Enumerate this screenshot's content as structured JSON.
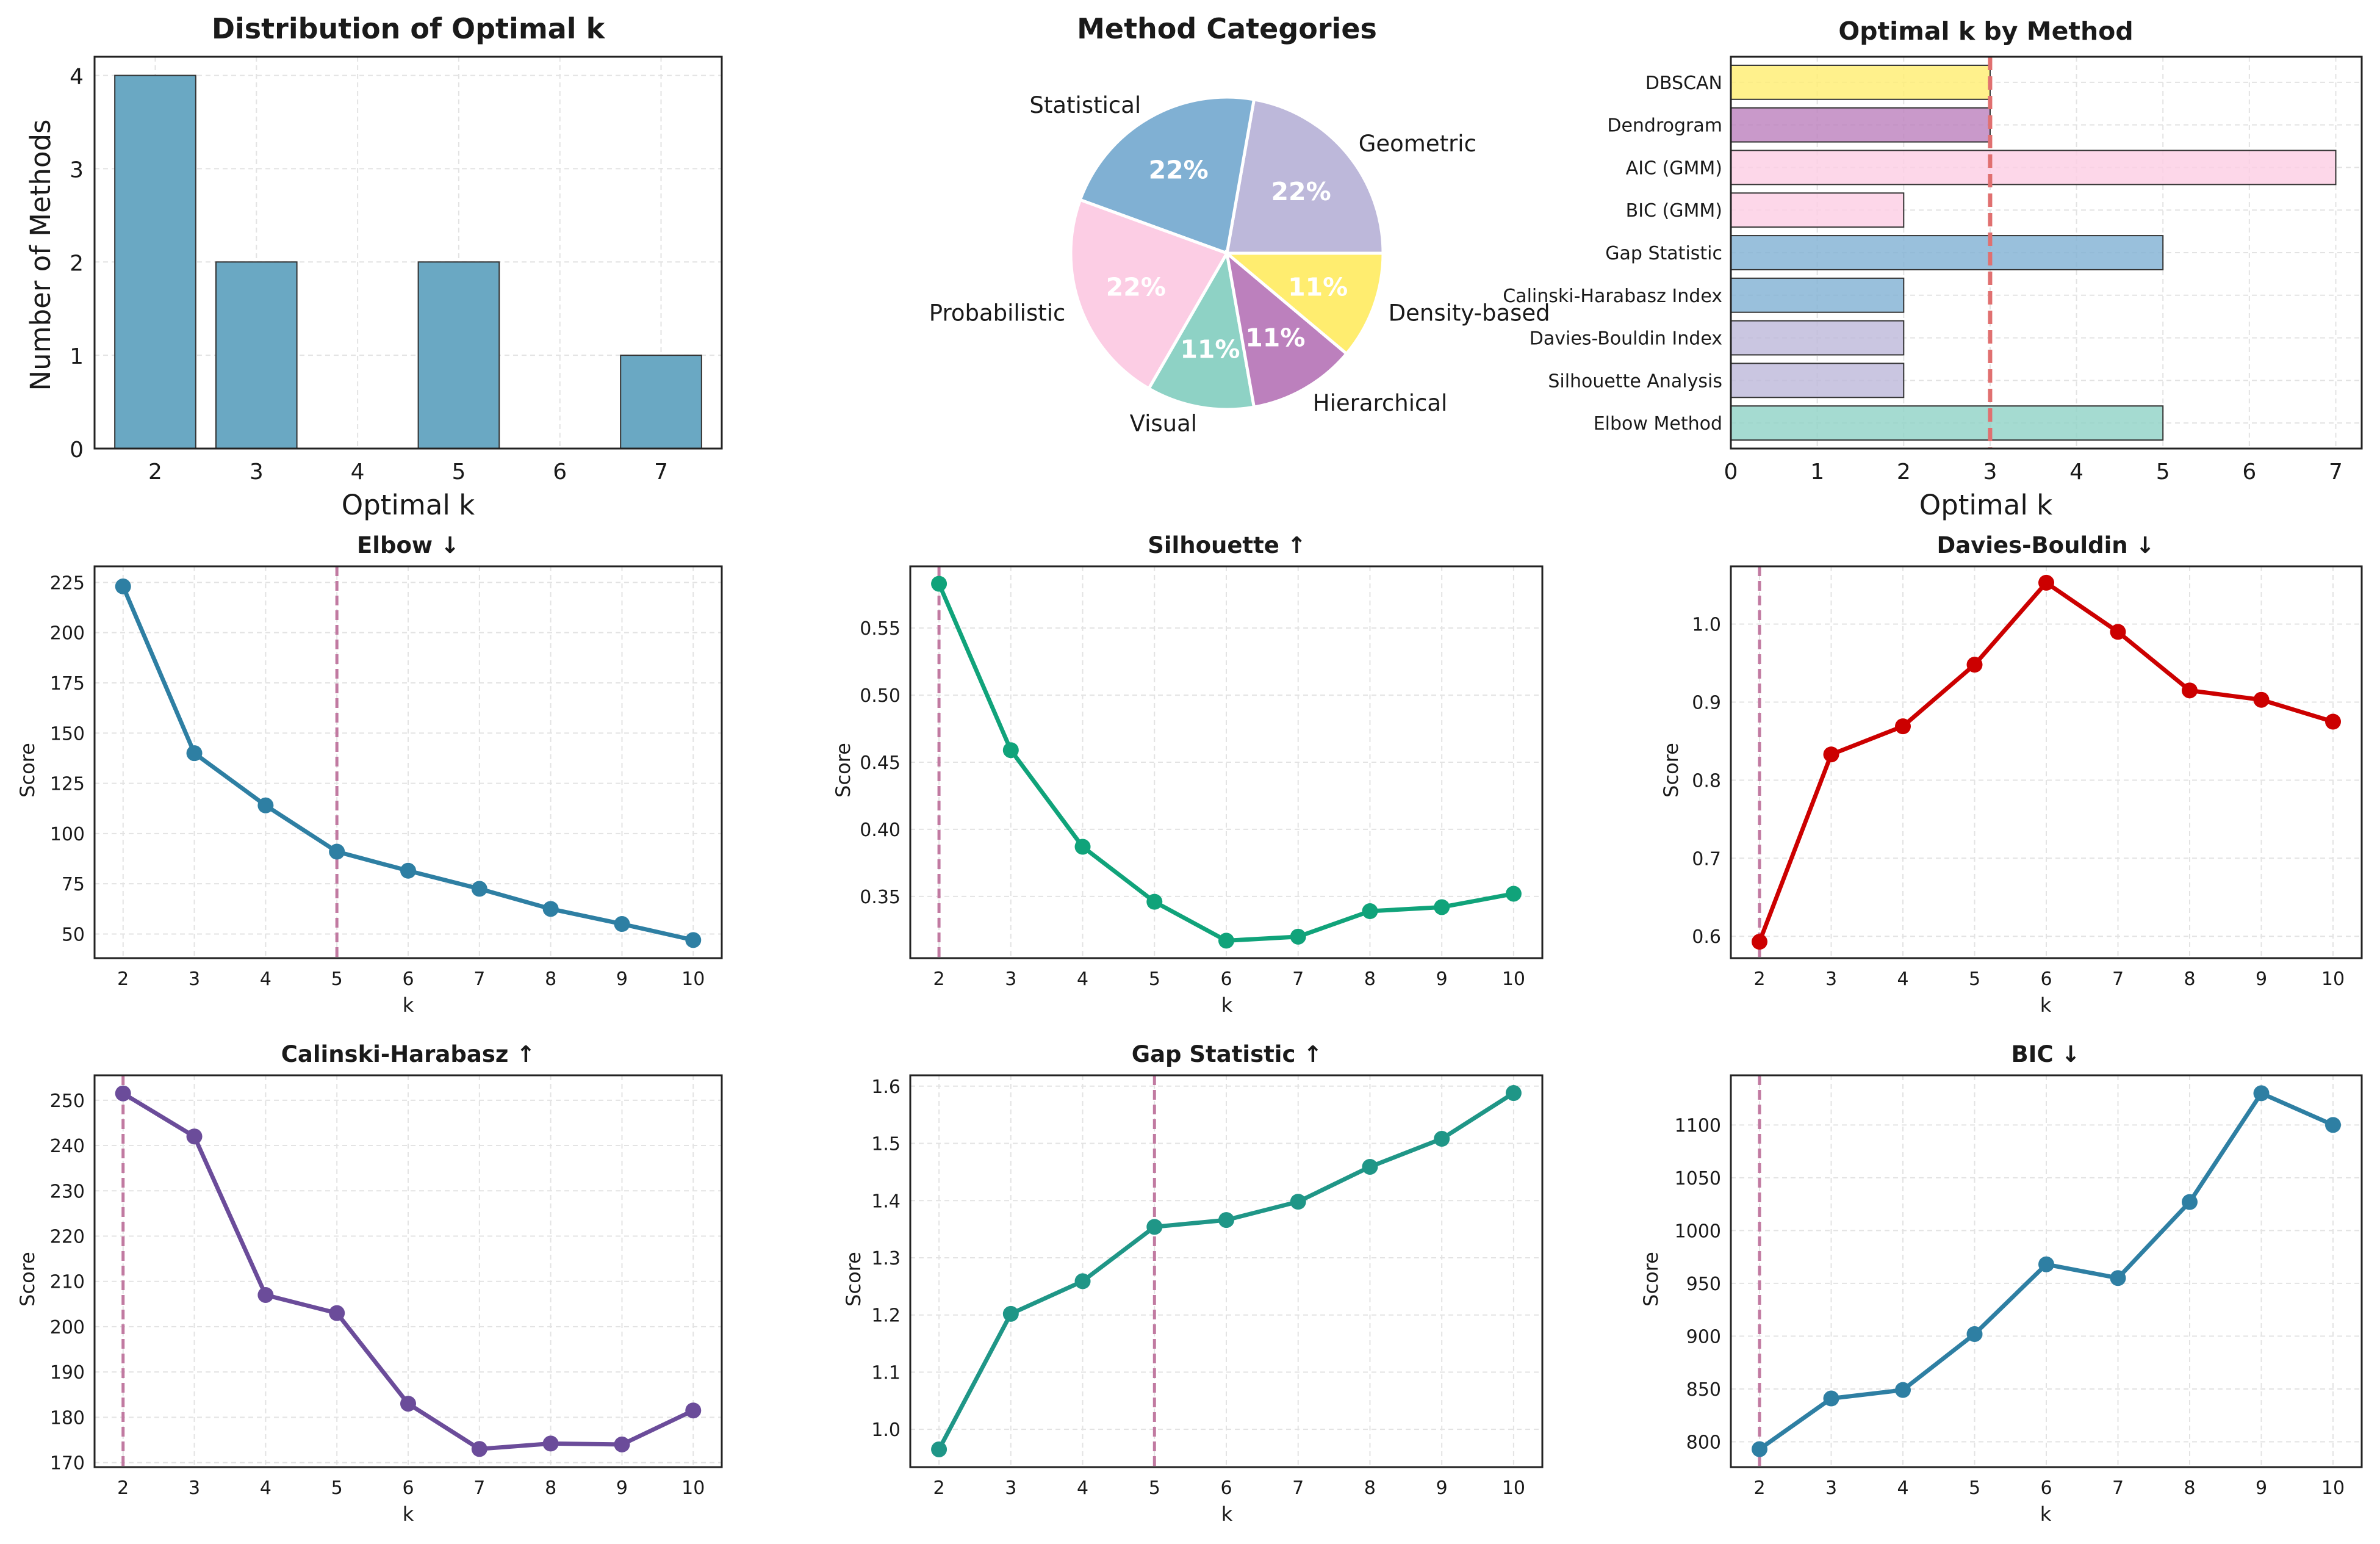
{
  "colors": {
    "steel": "#6aa8c3",
    "teal": "#8ed2c5",
    "lavender": "#bdb8da",
    "blue": "#80b0d3",
    "pink": "#fccde4",
    "purple": "#bc80bd",
    "yellow": "#ffed6f",
    "dashed_pink": "#c17aa1",
    "dashed_red": "#e07070",
    "elbow": "#2e7fa3",
    "silhouette": "#10a37a",
    "db": "#cc0000",
    "ch": "#6b4c9a",
    "gap": "#1f9687",
    "bic": "#2e7fa3"
  },
  "chart_data": [
    {
      "id": "dist",
      "type": "bar",
      "title": "Distribution of Optimal k",
      "xlabel": "Optimal k",
      "ylabel": "Number of Methods",
      "categories": [
        2,
        3,
        4,
        5,
        6,
        7
      ],
      "x_ticks": [
        "2",
        "3",
        "4",
        "5",
        "6",
        "7"
      ],
      "values": [
        4,
        2,
        0,
        2,
        0,
        1
      ],
      "ylim": [
        0,
        4.2
      ],
      "y_ticks": [
        "0",
        "1",
        "2",
        "3",
        "4"
      ]
    },
    {
      "id": "pie",
      "type": "pie",
      "title": "Method Categories",
      "slices": [
        {
          "label": "Geometric",
          "value": 22.2,
          "pct": "22%",
          "color": "#bdb8da"
        },
        {
          "label": "Statistical",
          "value": 22.2,
          "pct": "22%",
          "color": "#80b0d3"
        },
        {
          "label": "Probabilistic",
          "value": 22.2,
          "pct": "22%",
          "color": "#fccde4"
        },
        {
          "label": "Visual",
          "value": 11.1,
          "pct": "11%",
          "color": "#8ed2c5"
        },
        {
          "label": "Hierarchical",
          "value": 11.1,
          "pct": "11%",
          "color": "#bc80bd"
        },
        {
          "label": "Density-based",
          "value": 11.1,
          "pct": "11%",
          "color": "#ffed6f"
        }
      ]
    },
    {
      "id": "bymethod",
      "type": "bar",
      "orientation": "horizontal",
      "title": "Optimal k by Method",
      "xlabel": "Optimal k",
      "categories": [
        "Elbow Method",
        "Silhouette Analysis",
        "Davies-Bouldin Index",
        "Calinski-Harabasz Index",
        "Gap Statistic",
        "BIC (GMM)",
        "AIC (GMM)",
        "Dendrogram",
        "DBSCAN"
      ],
      "values": [
        5,
        2,
        2,
        2,
        5,
        2,
        7,
        3,
        3
      ],
      "bar_colors": [
        "#8ed2c5",
        "#bdb8da",
        "#bdb8da",
        "#80b0d3",
        "#80b0d3",
        "#fccde4",
        "#fccde4",
        "#bc80bd",
        "#ffed6f"
      ],
      "reference_line": 3,
      "xlim": [
        0,
        7.3
      ],
      "x_ticks": [
        "0",
        "1",
        "2",
        "3",
        "4",
        "5",
        "6",
        "7"
      ]
    },
    {
      "id": "elbow",
      "type": "line",
      "title": "Elbow ↓",
      "xlabel": "k",
      "ylabel": "Score",
      "x": [
        2,
        3,
        4,
        5,
        6,
        7,
        8,
        9,
        10
      ],
      "x_ticks": [
        "2",
        "3",
        "4",
        "5",
        "6",
        "7",
        "8",
        "9",
        "10"
      ],
      "values": [
        223,
        140,
        114,
        91,
        81.5,
        72.5,
        62.5,
        55,
        47
      ],
      "optimal_k": 5,
      "ylim": [
        38,
        233
      ],
      "y_tick_values": [
        50,
        75,
        100,
        125,
        150,
        175,
        200,
        225
      ],
      "y_ticks": [
        "50",
        "75",
        "100",
        "125",
        "150",
        "175",
        "200",
        "225"
      ],
      "color": "#2e7fa3"
    },
    {
      "id": "silhouette",
      "type": "line",
      "title": "Silhouette ↑",
      "xlabel": "k",
      "ylabel": "Score",
      "x": [
        2,
        3,
        4,
        5,
        6,
        7,
        8,
        9,
        10
      ],
      "x_ticks": [
        "2",
        "3",
        "4",
        "5",
        "6",
        "7",
        "8",
        "9",
        "10"
      ],
      "values": [
        0.583,
        0.459,
        0.387,
        0.346,
        0.317,
        0.32,
        0.339,
        0.342,
        0.352
      ],
      "optimal_k": 2,
      "ylim": [
        0.304,
        0.596
      ],
      "y_tick_values": [
        0.35,
        0.4,
        0.45,
        0.5,
        0.55
      ],
      "y_ticks": [
        "0.35",
        "0.40",
        "0.45",
        "0.50",
        "0.55"
      ],
      "color": "#10a37a"
    },
    {
      "id": "db",
      "type": "line",
      "title": "Davies-Bouldin ↓",
      "xlabel": "k",
      "ylabel": "Score",
      "x": [
        2,
        3,
        4,
        5,
        6,
        7,
        8,
        9,
        10
      ],
      "x_ticks": [
        "2",
        "3",
        "4",
        "5",
        "6",
        "7",
        "8",
        "9",
        "10"
      ],
      "values": [
        0.593,
        0.833,
        0.869,
        0.948,
        1.053,
        0.99,
        0.915,
        0.903,
        0.875
      ],
      "optimal_k": 2,
      "ylim": [
        0.572,
        1.074
      ],
      "y_tick_values": [
        0.6,
        0.7,
        0.8,
        0.9,
        1.0
      ],
      "y_ticks": [
        "0.6",
        "0.7",
        "0.8",
        "0.9",
        "1.0"
      ],
      "color": "#cc0000"
    },
    {
      "id": "ch",
      "type": "line",
      "title": "Calinski-Harabasz ↑",
      "xlabel": "k",
      "ylabel": "Score",
      "x": [
        2,
        3,
        4,
        5,
        6,
        7,
        8,
        9,
        10
      ],
      "x_ticks": [
        "2",
        "3",
        "4",
        "5",
        "6",
        "7",
        "8",
        "9",
        "10"
      ],
      "values": [
        251.5,
        242,
        207,
        203,
        183,
        173,
        174.2,
        174,
        181.5
      ],
      "optimal_k": 2,
      "ylim": [
        169,
        255.5
      ],
      "y_tick_values": [
        170,
        180,
        190,
        200,
        210,
        220,
        230,
        240,
        250
      ],
      "y_ticks": [
        "170",
        "180",
        "190",
        "200",
        "210",
        "220",
        "230",
        "240",
        "250"
      ],
      "color": "#6b4c9a"
    },
    {
      "id": "gap",
      "type": "line",
      "title": "Gap Statistic ↑",
      "xlabel": "k",
      "ylabel": "Score",
      "x": [
        2,
        3,
        4,
        5,
        6,
        7,
        8,
        9,
        10
      ],
      "x_ticks": [
        "2",
        "3",
        "4",
        "5",
        "6",
        "7",
        "8",
        "9",
        "10"
      ],
      "values": [
        0.965,
        1.202,
        1.259,
        1.354,
        1.366,
        1.398,
        1.459,
        1.508,
        1.588
      ],
      "optimal_k": 5,
      "ylim": [
        0.934,
        1.619
      ],
      "y_tick_values": [
        1.0,
        1.1,
        1.2,
        1.3,
        1.4,
        1.5,
        1.6
      ],
      "y_ticks": [
        "1.0",
        "1.1",
        "1.2",
        "1.3",
        "1.4",
        "1.5",
        "1.6"
      ],
      "color": "#1f9687"
    },
    {
      "id": "bic",
      "type": "line",
      "title": "BIC ↓",
      "xlabel": "k",
      "ylabel": "Score",
      "x": [
        2,
        3,
        4,
        5,
        6,
        7,
        8,
        9,
        10
      ],
      "x_ticks": [
        "2",
        "3",
        "4",
        "5",
        "6",
        "7",
        "8",
        "9",
        "10"
      ],
      "values": [
        793,
        841,
        849,
        902,
        968,
        955,
        1027,
        1130,
        1100
      ],
      "optimal_k": 2,
      "ylim": [
        776,
        1147
      ],
      "y_tick_values": [
        800,
        850,
        900,
        950,
        1000,
        1050,
        1100
      ],
      "y_ticks": [
        "800",
        "850",
        "900",
        "950",
        "1000",
        "1050",
        "1100"
      ],
      "color": "#2e7fa3"
    }
  ]
}
